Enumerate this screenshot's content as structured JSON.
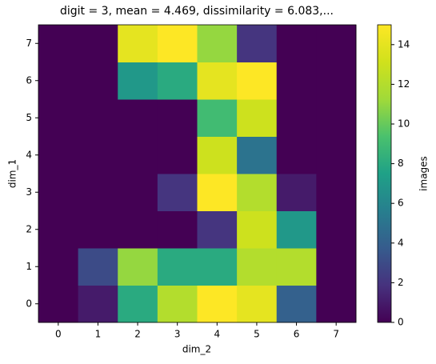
{
  "chart_data": {
    "type": "heatmap",
    "title": "digit = 3, mean = 4.469, dissimilarity = 6.083,...",
    "xlabel": "dim_2",
    "ylabel": "dim_1",
    "x": [
      0,
      1,
      2,
      3,
      4,
      5,
      6,
      7
    ],
    "y": [
      0,
      1,
      2,
      3,
      4,
      5,
      6,
      7
    ],
    "values": [
      [
        0,
        1,
        8,
        12,
        15,
        14,
        4,
        0
      ],
      [
        0,
        3,
        11,
        8,
        8,
        12,
        12,
        0
      ],
      [
        0,
        0,
        0,
        0,
        2,
        13,
        7,
        0
      ],
      [
        0,
        0,
        0,
        2,
        15,
        12,
        1,
        0
      ],
      [
        0,
        0,
        0,
        0,
        13,
        5,
        0,
        0
      ],
      [
        0,
        0,
        0,
        0,
        9,
        13,
        0,
        0
      ],
      [
        0,
        0,
        7,
        8,
        14,
        15,
        0,
        0
      ],
      [
        0,
        0,
        14,
        15,
        11,
        2,
        0,
        0
      ]
    ],
    "colormap": "viridis",
    "colorbar_label": "images",
    "clim": [
      0,
      15
    ],
    "cticks": [
      0,
      2,
      4,
      6,
      8,
      10,
      12,
      14
    ]
  }
}
